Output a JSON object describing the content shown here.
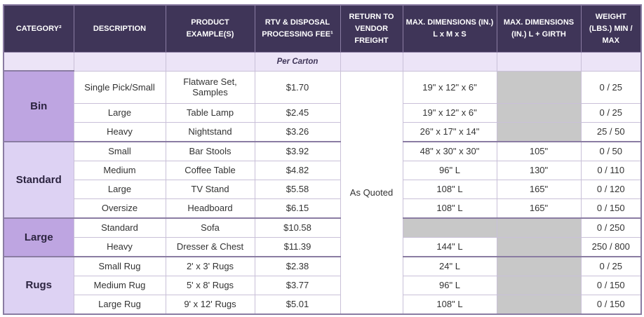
{
  "headers": [
    "CATEGORY²",
    "DESCRIPTION",
    "PRODUCT EXAMPLE(S)",
    "RTV & DISPOSAL PROCESSING FEE¹",
    "RETURN TO VENDOR FREIGHT",
    "MAX. DIMENSIONS (IN.) L x M x S",
    "MAX. DIMENSIONS (IN.) L + GIRTH",
    "WEIGHT (LBS.) MIN / MAX"
  ],
  "subheader_fee_note": "Per Carton",
  "return_freight": "As Quoted",
  "categories": {
    "bin": "Bin",
    "standard": "Standard",
    "large": "Large",
    "rugs": "Rugs"
  },
  "rows": [
    {
      "description": "Single Pick/Small",
      "example": "Flatware Set, Samples",
      "fee": "$1.70",
      "dims": "19\" x 12\" x 6\"",
      "girth": "",
      "weight": "0 / 25"
    },
    {
      "description": "Large",
      "example": "Table Lamp",
      "fee": "$2.45",
      "dims": "19\" x 12\" x 6\"",
      "girth": "",
      "weight": "0 / 25"
    },
    {
      "description": "Heavy",
      "example": "Nightstand",
      "fee": "$3.26",
      "dims": "26\" x 17\" x 14\"",
      "girth": "",
      "weight": "25 / 50"
    },
    {
      "description": "Small",
      "example": "Bar Stools",
      "fee": "$3.92",
      "dims": "48\" x 30\" x 30\"",
      "girth": "105\"",
      "weight": "0 / 50"
    },
    {
      "description": "Medium",
      "example": "Coffee Table",
      "fee": "$4.82",
      "dims": "96\" L",
      "girth": "130\"",
      "weight": "0 / 110"
    },
    {
      "description": "Large",
      "example": "TV Stand",
      "fee": "$5.58",
      "dims": "108\" L",
      "girth": "165\"",
      "weight": "0 / 120"
    },
    {
      "description": "Oversize",
      "example": "Headboard",
      "fee": "$6.15",
      "dims": "108\" L",
      "girth": "165\"",
      "weight": "0 / 150"
    },
    {
      "description": "Standard",
      "example": "Sofa",
      "fee": "$10.58",
      "dims": "",
      "girth": "",
      "weight": "0 / 250"
    },
    {
      "description": "Heavy",
      "example": "Dresser & Chest",
      "fee": "$11.39",
      "dims": "144\" L",
      "girth": "",
      "weight": "250 / 800"
    },
    {
      "description": "Small Rug",
      "example": "2' x 3' Rugs",
      "fee": "$2.38",
      "dims": "24\" L",
      "girth": "",
      "weight": "0 / 25"
    },
    {
      "description": "Medium Rug",
      "example": "5' x 8' Rugs",
      "fee": "$3.77",
      "dims": "96\" L",
      "girth": "",
      "weight": "0 / 150"
    },
    {
      "description": "Large Rug",
      "example": "9' x 12' Rugs",
      "fee": "$5.01",
      "dims": "108\" L",
      "girth": "",
      "weight": "0 / 150"
    }
  ],
  "colors": {
    "header_bg": "#3f3558",
    "subheader_bg": "#ece4f7",
    "category_dark": "#bea5e1",
    "category_light": "#ddd2f3",
    "grey_cell": "#c8c8c8",
    "border": "#8a7ca2"
  }
}
